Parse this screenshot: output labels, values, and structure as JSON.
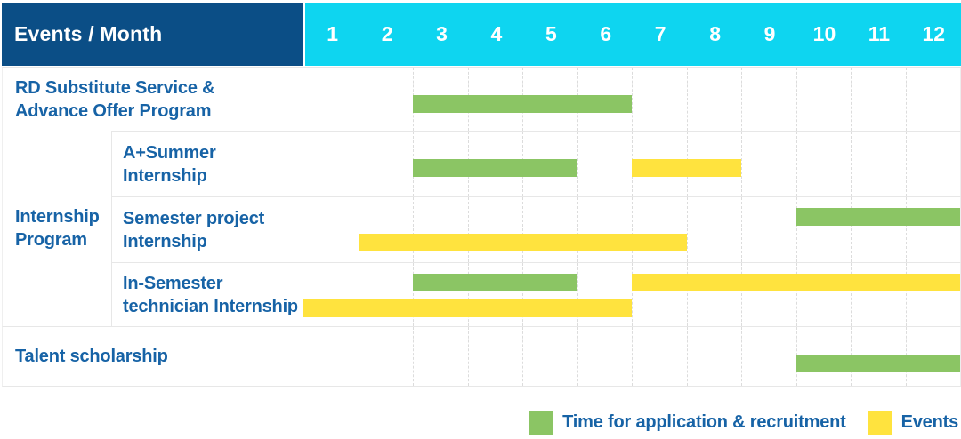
{
  "colors": {
    "navy": "#0B4E86",
    "cyan": "#0ED5F0",
    "green": "#8BC564",
    "yellow": "#FFE33E",
    "text": "#1763A6",
    "grid": "#E7E7E7",
    "griddash": "#DCDCDC"
  },
  "chart_data": {
    "type": "table",
    "subtype": "gantt",
    "title": "Events / Month",
    "xlabel": "Month",
    "months": [
      "1",
      "2",
      "3",
      "4",
      "5",
      "6",
      "7",
      "8",
      "9",
      "10",
      "11",
      "12"
    ],
    "x_range": [
      1,
      12
    ],
    "grid": true,
    "legend_position": "bottom-right",
    "legend": [
      {
        "key": "application",
        "label": "Time for application & recruitment",
        "color": "#8BC564"
      },
      {
        "key": "events",
        "label": "Events",
        "color": "#FFE33E"
      }
    ],
    "group": {
      "label": "Internship Program",
      "label_lines": [
        "Internship",
        "Program"
      ],
      "row_ids": [
        "aplus",
        "semester",
        "insemester"
      ]
    },
    "rows": [
      {
        "id": "rd",
        "label": "RD Substitute Service & Advance Offer Program",
        "label_lines": [
          "RD Substitute Service &",
          "Advance Offer Program"
        ],
        "bars": [
          {
            "type": "application",
            "start_month": 3,
            "end_month": 6,
            "lane": "mid"
          }
        ]
      },
      {
        "id": "aplus",
        "group": "Internship Program",
        "label": "A+Summer Internship",
        "label_lines": [
          "A+Summer",
          "Internship"
        ],
        "bars": [
          {
            "type": "application",
            "start_month": 3,
            "end_month": 5,
            "lane": "mid"
          },
          {
            "type": "events",
            "start_month": 7,
            "end_month": 8,
            "lane": "mid"
          }
        ]
      },
      {
        "id": "semester",
        "group": "Internship Program",
        "label": "Semester project Internship",
        "label_lines": [
          "Semester project",
          "Internship"
        ],
        "bars": [
          {
            "type": "application",
            "start_month": 10,
            "end_month": 12,
            "lane": "top"
          },
          {
            "type": "events",
            "start_month": 2,
            "end_month": 7,
            "lane": "bottom"
          }
        ]
      },
      {
        "id": "insemester",
        "group": "Internship Program",
        "label": "In-Semester technician Internship",
        "label_lines": [
          "In-Semester",
          "technician Internship"
        ],
        "bars": [
          {
            "type": "application",
            "start_month": 3,
            "end_month": 5,
            "lane": "top"
          },
          {
            "type": "events",
            "start_month": 7,
            "end_month": 12,
            "lane": "top"
          },
          {
            "type": "events",
            "start_month": 1,
            "end_month": 6,
            "lane": "bottom"
          }
        ]
      },
      {
        "id": "talent",
        "label": "Talent scholarship",
        "label_lines": [
          "Talent scholarship"
        ],
        "bars": [
          {
            "type": "application",
            "start_month": 10,
            "end_month": 12,
            "lane": "mid"
          }
        ]
      }
    ]
  }
}
